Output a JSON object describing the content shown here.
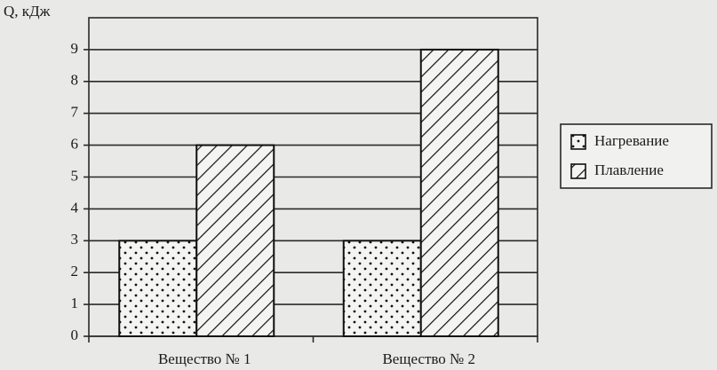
{
  "chart_data": {
    "type": "bar",
    "y_axis_label": "Q, кДж",
    "categories": [
      "Вещество № 1",
      "Вещество № 2"
    ],
    "series": [
      {
        "name": "Нагревание",
        "pattern": "dots",
        "values": [
          3,
          3
        ]
      },
      {
        "name": "Плавление",
        "pattern": "hatch",
        "values": [
          6,
          9
        ]
      }
    ],
    "ylim": [
      0,
      10
    ],
    "yticks": [
      0,
      1,
      2,
      3,
      4,
      5,
      6,
      7,
      8,
      9
    ],
    "grid": true,
    "legend": "right"
  }
}
